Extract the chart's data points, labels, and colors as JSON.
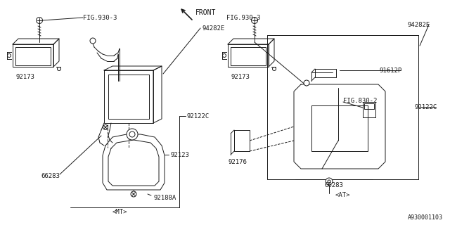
{
  "bg_color": "#ffffff",
  "line_color": "#1a1a1a",
  "part_number": "A930001103",
  "mt_label": "<MT>",
  "at_label": "<AT>",
  "front_label": "FRONT",
  "fig930_3": "FIG.930-3",
  "fig830_2": "FIG.830-2",
  "p94282E": "94282E",
  "p91612P": "91612P",
  "p92173": "92173",
  "p92122C": "92122C",
  "p92123": "92123",
  "p92188A": "92188A",
  "p66283": "66283",
  "p92176": "92176",
  "font_size": 6.5,
  "line_width": 0.7
}
